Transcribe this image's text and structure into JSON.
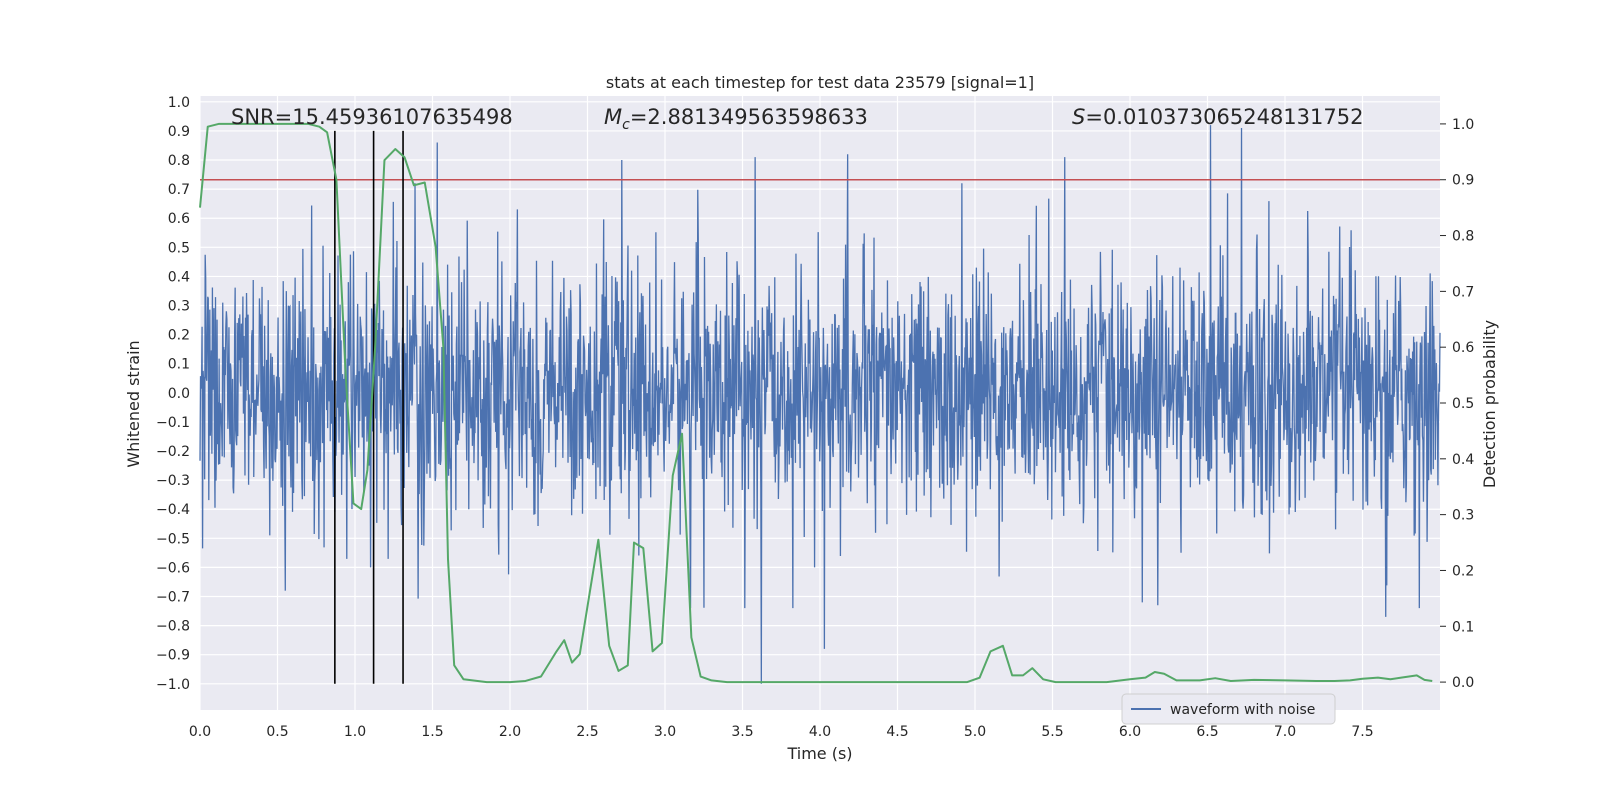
{
  "chart_data": {
    "type": "line",
    "title": "stats at each timestep for test data 23579 [signal=1]",
    "xlabel": "Time (s)",
    "ylabel": "Whitened strain",
    "y2label": "Detection probability",
    "xlim": [
      0.0,
      8.0
    ],
    "ylim": [
      -1.09,
      1.02
    ],
    "y2lim": [
      -0.05,
      1.05
    ],
    "xticks": [
      0.0,
      0.5,
      1.0,
      1.5,
      2.0,
      2.5,
      3.0,
      3.5,
      4.0,
      4.5,
      5.0,
      5.5,
      6.0,
      6.5,
      7.0,
      7.5
    ],
    "xtick_labels": [
      "0.0",
      "0.5",
      "1.0",
      "1.5",
      "2.0",
      "2.5",
      "3.0",
      "3.5",
      "4.0",
      "4.5",
      "5.0",
      "5.5",
      "6.0",
      "6.5",
      "7.0",
      "7.5"
    ],
    "yticks": [
      -1.0,
      -0.9,
      -0.8,
      -0.7,
      -0.6,
      -0.5,
      -0.4,
      -0.3,
      -0.2,
      -0.1,
      0.0,
      0.1,
      0.2,
      0.3,
      0.4,
      0.5,
      0.6,
      0.7,
      0.8,
      0.9,
      1.0
    ],
    "ytick_labels": [
      "−1.0",
      "−0.9",
      "−0.8",
      "−0.7",
      "−0.6",
      "−0.5",
      "−0.4",
      "−0.3",
      "−0.2",
      "−0.1",
      "0.0",
      "0.1",
      "0.2",
      "0.3",
      "0.4",
      "0.5",
      "0.6",
      "0.7",
      "0.8",
      "0.9",
      "1.0"
    ],
    "y2ticks": [
      0.0,
      0.1,
      0.2,
      0.3,
      0.4,
      0.5,
      0.6,
      0.7,
      0.8,
      0.9,
      1.0
    ],
    "y2tick_labels": [
      "0.0",
      "0.1",
      "0.2",
      "0.3",
      "0.4",
      "0.5",
      "0.6",
      "0.7",
      "0.8",
      "0.9",
      "1.0"
    ],
    "annotations": {
      "snr": "SNR=15.45936107635498",
      "mc_symbol": "M",
      "mc_sub": "c",
      "mc_value": "=2.881349563598633",
      "s_symbol": "S",
      "s_value": "=0.010373065248131752"
    },
    "threshold": {
      "axis": "right",
      "value": 0.9,
      "color": "#c44e52"
    },
    "vlines": {
      "x": [
        0.87,
        1.12,
        1.31
      ],
      "ymin": -1.0,
      "ymax": 0.9,
      "color": "#000000"
    },
    "waveform": {
      "name": "waveform with noise",
      "color": "#4c72b0",
      "t_start": 0.0,
      "t_end": 8.0,
      "spikes": [
        {
          "t": 1.53,
          "v": 0.86
        },
        {
          "t": 2.72,
          "v": 0.8
        },
        {
          "t": 3.58,
          "v": 0.81
        },
        {
          "t": 4.18,
          "v": 0.82
        },
        {
          "t": 5.58,
          "v": 0.81
        },
        {
          "t": 6.52,
          "v": 0.92
        },
        {
          "t": 6.72,
          "v": 0.91
        },
        {
          "t": 3.62,
          "v": -1.0
        },
        {
          "t": 4.03,
          "v": -0.88
        },
        {
          "t": 7.65,
          "v": -0.77
        },
        {
          "t": 1.1,
          "v": -0.6
        },
        {
          "t": 0.55,
          "v": -0.68
        },
        {
          "t": 6.18,
          "v": -0.73
        },
        {
          "t": 6.08,
          "v": -0.72
        }
      ]
    },
    "probability": {
      "name": "detection probability",
      "color": "#55a868",
      "points": [
        [
          0.0,
          0.85
        ],
        [
          0.05,
          0.995
        ],
        [
          0.12,
          1.0
        ],
        [
          0.25,
          1.0
        ],
        [
          0.5,
          1.0
        ],
        [
          0.7,
          1.0
        ],
        [
          0.77,
          0.995
        ],
        [
          0.82,
          0.985
        ],
        [
          0.88,
          0.9
        ],
        [
          0.94,
          0.55
        ],
        [
          0.99,
          0.32
        ],
        [
          1.04,
          0.31
        ],
        [
          1.08,
          0.38
        ],
        [
          1.13,
          0.6
        ],
        [
          1.19,
          0.935
        ],
        [
          1.26,
          0.955
        ],
        [
          1.32,
          0.94
        ],
        [
          1.38,
          0.89
        ],
        [
          1.45,
          0.895
        ],
        [
          1.52,
          0.78
        ],
        [
          1.57,
          0.6
        ],
        [
          1.6,
          0.22
        ],
        [
          1.64,
          0.03
        ],
        [
          1.7,
          0.005
        ],
        [
          1.85,
          0.0
        ],
        [
          2.0,
          0.0
        ],
        [
          2.1,
          0.002
        ],
        [
          2.2,
          0.01
        ],
        [
          2.3,
          0.055
        ],
        [
          2.35,
          0.075
        ],
        [
          2.4,
          0.035
        ],
        [
          2.45,
          0.05
        ],
        [
          2.52,
          0.17
        ],
        [
          2.57,
          0.255
        ],
        [
          2.64,
          0.065
        ],
        [
          2.7,
          0.02
        ],
        [
          2.76,
          0.03
        ],
        [
          2.8,
          0.25
        ],
        [
          2.86,
          0.24
        ],
        [
          2.92,
          0.055
        ],
        [
          2.98,
          0.07
        ],
        [
          3.05,
          0.37
        ],
        [
          3.11,
          0.445
        ],
        [
          3.17,
          0.08
        ],
        [
          3.23,
          0.01
        ],
        [
          3.3,
          0.003
        ],
        [
          3.4,
          0.0
        ],
        [
          4.0,
          0.0
        ],
        [
          4.5,
          0.0
        ],
        [
          4.95,
          0.0
        ],
        [
          5.03,
          0.008
        ],
        [
          5.1,
          0.055
        ],
        [
          5.18,
          0.065
        ],
        [
          5.24,
          0.012
        ],
        [
          5.31,
          0.012
        ],
        [
          5.37,
          0.025
        ],
        [
          5.44,
          0.005
        ],
        [
          5.52,
          0.0
        ],
        [
          5.85,
          0.0
        ],
        [
          6.0,
          0.005
        ],
        [
          6.1,
          0.008
        ],
        [
          6.16,
          0.018
        ],
        [
          6.22,
          0.015
        ],
        [
          6.3,
          0.003
        ],
        [
          6.45,
          0.003
        ],
        [
          6.55,
          0.007
        ],
        [
          6.65,
          0.002
        ],
        [
          6.8,
          0.004
        ],
        [
          7.0,
          0.003
        ],
        [
          7.2,
          0.002
        ],
        [
          7.32,
          0.002
        ],
        [
          7.42,
          0.003
        ],
        [
          7.5,
          0.006
        ],
        [
          7.6,
          0.008
        ],
        [
          7.68,
          0.005
        ],
        [
          7.75,
          0.008
        ],
        [
          7.8,
          0.01
        ],
        [
          7.85,
          0.012
        ],
        [
          7.9,
          0.004
        ],
        [
          7.95,
          0.002
        ]
      ]
    },
    "legend": {
      "label": "waveform with noise",
      "location": "lower-right"
    },
    "colors": {
      "axes_bg": "#eaeaf2",
      "grid": "#ffffff",
      "text": "#262626"
    }
  }
}
